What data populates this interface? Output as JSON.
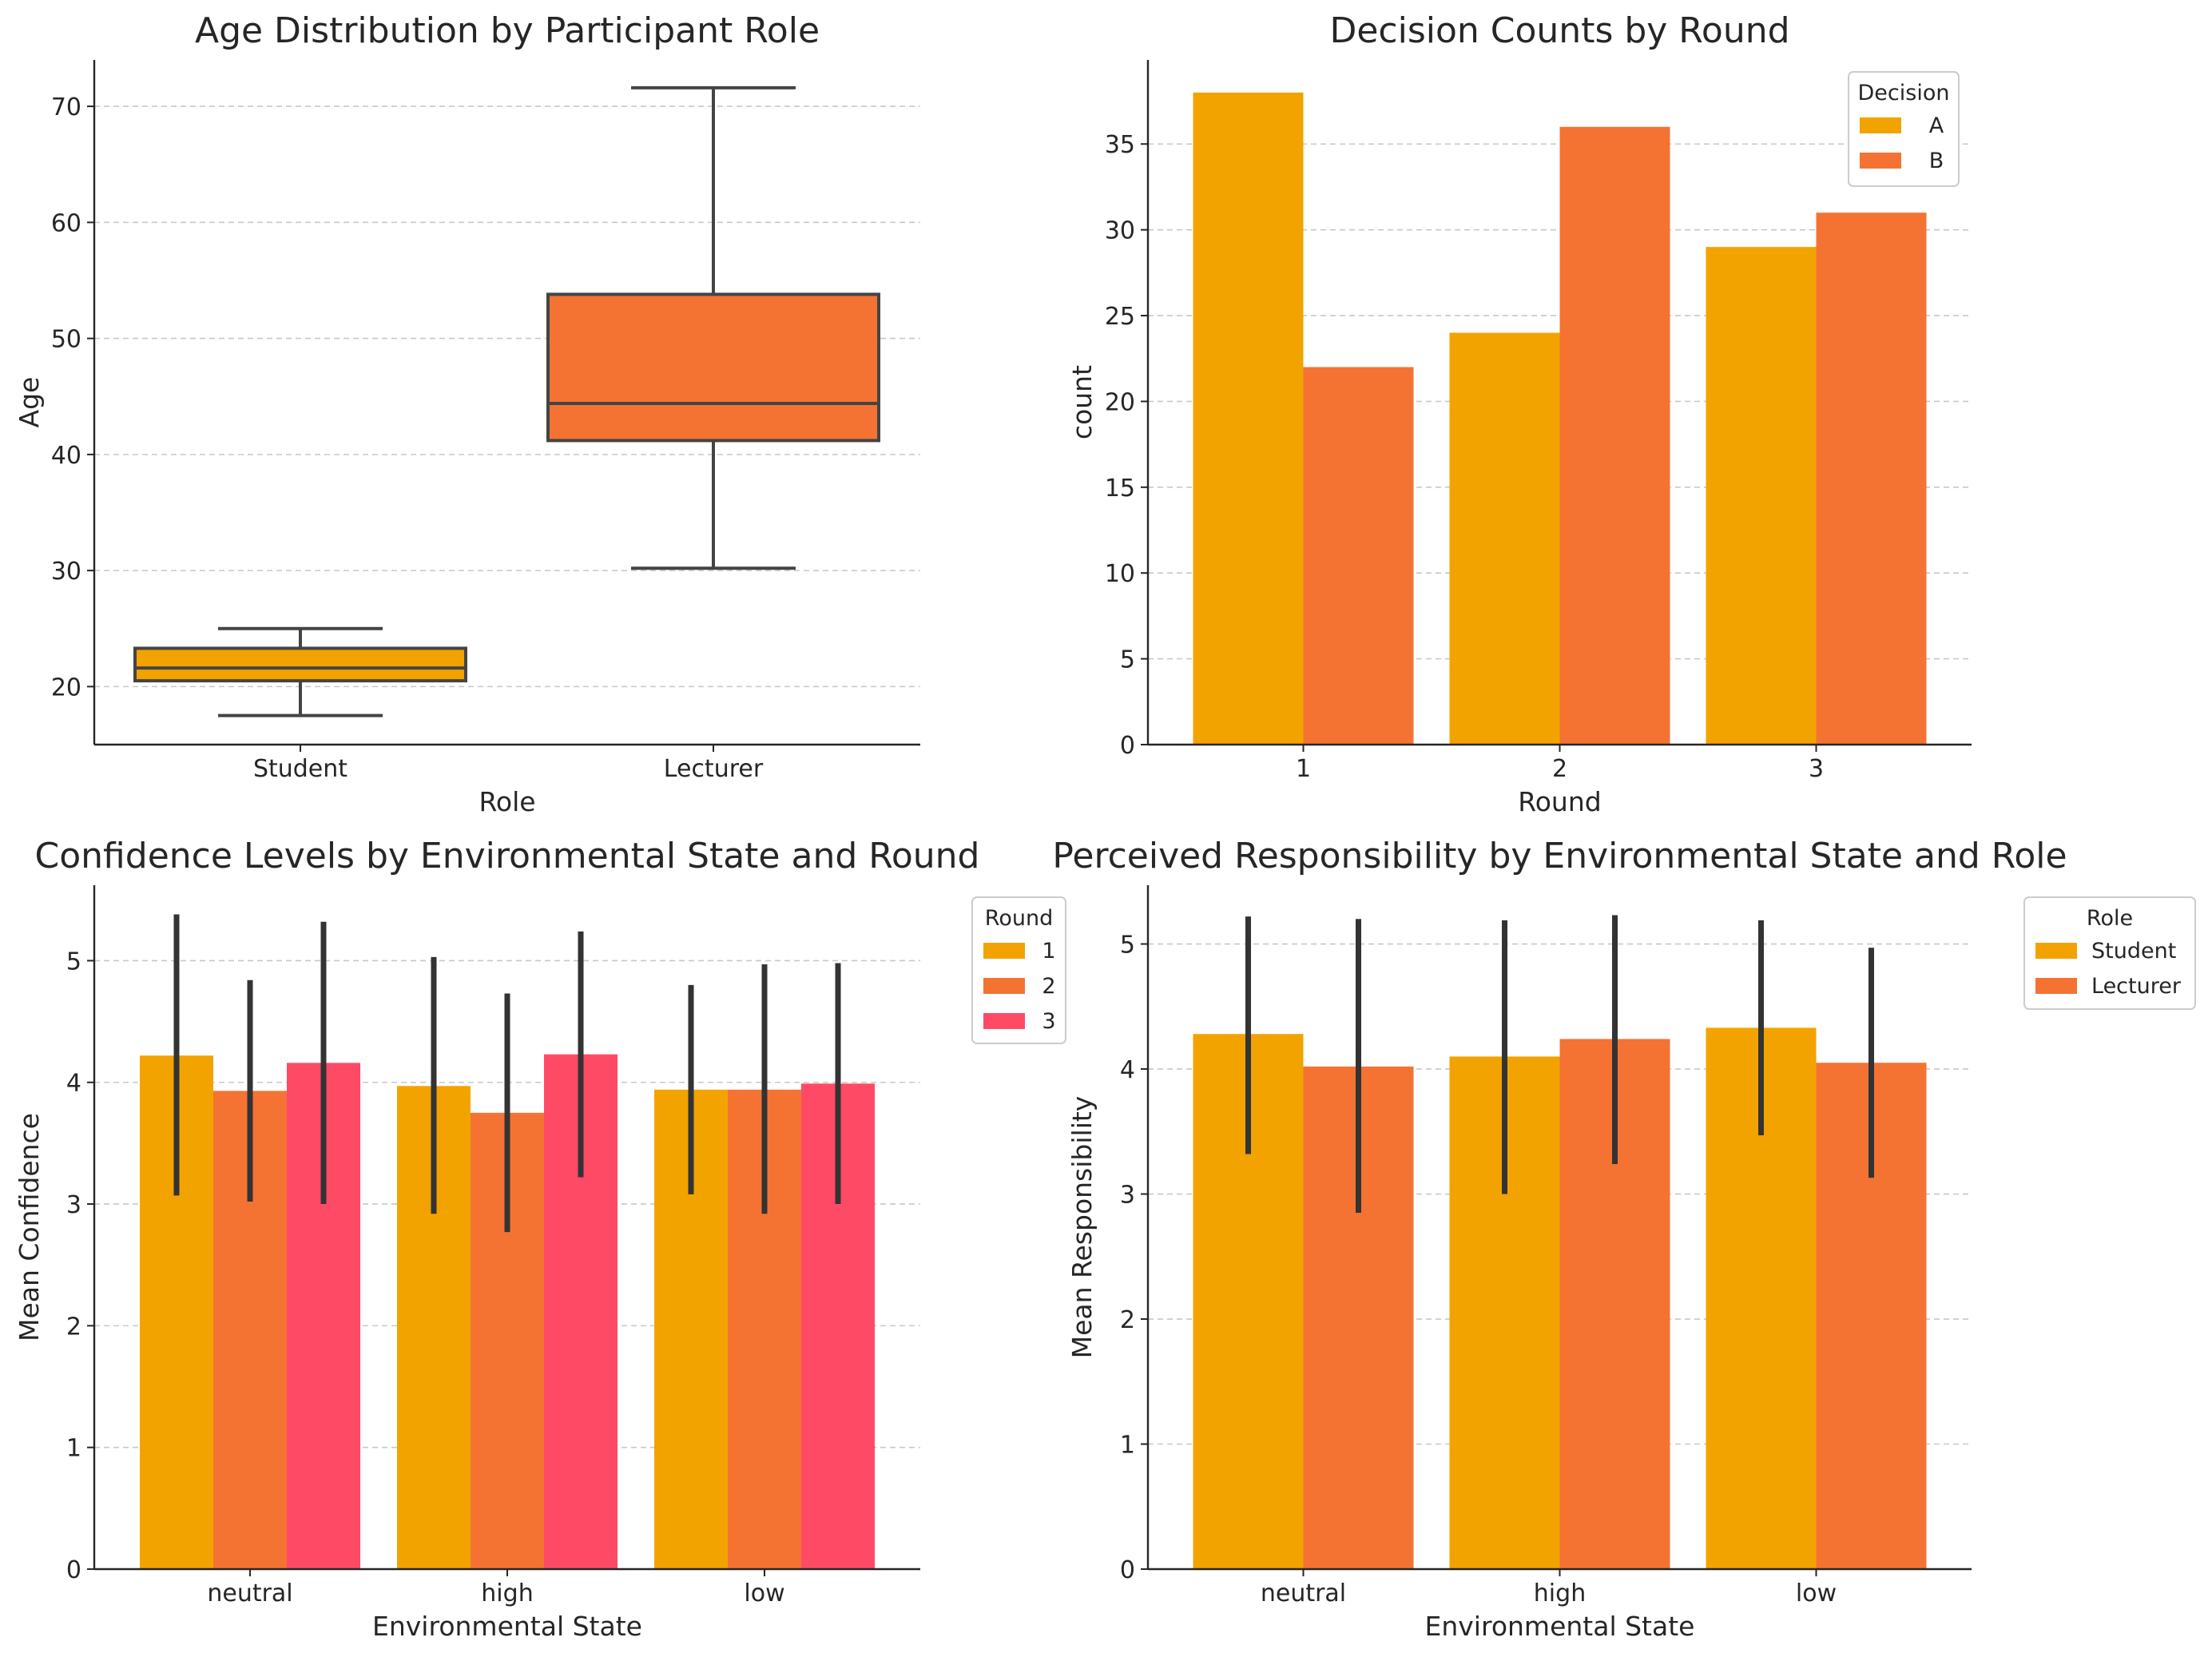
{
  "chart_data": [
    {
      "type": "box",
      "title": "Age Distribution by Participant Role",
      "xlabel": "Role",
      "ylabel": "Age",
      "ylim": [
        15,
        74
      ],
      "yticks": [
        20,
        30,
        40,
        50,
        60,
        70
      ],
      "grid": true,
      "categories": [
        "Student",
        "Lecturer"
      ],
      "colors": [
        "#F2A300",
        "#F47333"
      ],
      "boxes": [
        {
          "category": "Student",
          "whisker_low": 17.5,
          "q1": 20.5,
          "median": 21.6,
          "q3": 23.3,
          "whisker_high": 25.0
        },
        {
          "category": "Lecturer",
          "whisker_low": 30.2,
          "q1": 41.2,
          "median": 44.4,
          "q3": 53.8,
          "whisker_high": 71.6
        }
      ]
    },
    {
      "type": "bar",
      "title": "Decision Counts by Round",
      "xlabel": "Round",
      "ylabel": "count",
      "ylim": [
        0,
        39.9
      ],
      "yticks": [
        0,
        5,
        10,
        15,
        20,
        25,
        30,
        35
      ],
      "grid": true,
      "categories": [
        "1",
        "2",
        "3"
      ],
      "legend": {
        "title": "Decision",
        "position": "upper right"
      },
      "series": [
        {
          "name": "A",
          "color": "#F2A300",
          "values": [
            38,
            24,
            29
          ]
        },
        {
          "name": "B",
          "color": "#F47333",
          "values": [
            22,
            36,
            31
          ]
        }
      ]
    },
    {
      "type": "bar",
      "title": "Confidence Levels by Environmental State and Round",
      "xlabel": "Environmental State",
      "ylabel": "Mean Confidence",
      "ylim": [
        0,
        5.62
      ],
      "yticks": [
        0,
        1,
        2,
        3,
        4,
        5
      ],
      "grid": true,
      "categories": [
        "neutral",
        "high",
        "low"
      ],
      "legend": {
        "title": "Round",
        "position": "outside right"
      },
      "series": [
        {
          "name": "1",
          "color": "#F2A300",
          "values": [
            4.22,
            3.97,
            3.94
          ],
          "err_low": [
            3.07,
            2.92,
            3.08
          ],
          "err_high": [
            5.38,
            5.03,
            4.8
          ]
        },
        {
          "name": "2",
          "color": "#F47333",
          "values": [
            3.93,
            3.75,
            3.94
          ],
          "err_low": [
            3.02,
            2.77,
            2.92
          ],
          "err_high": [
            4.84,
            4.73,
            4.97
          ]
        },
        {
          "name": "3",
          "color": "#FF4A66",
          "values": [
            4.16,
            4.23,
            3.99
          ],
          "err_low": [
            3.0,
            3.22,
            3.0
          ],
          "err_high": [
            5.32,
            5.24,
            4.98
          ]
        }
      ]
    },
    {
      "type": "bar",
      "title": "Perceived Responsibility by Environmental State and Role",
      "xlabel": "Environmental State",
      "ylabel": "Mean Responsibility",
      "ylim": [
        0,
        5.47
      ],
      "yticks": [
        0,
        1,
        2,
        3,
        4,
        5
      ],
      "grid": true,
      "categories": [
        "neutral",
        "high",
        "low"
      ],
      "legend": {
        "title": "Role",
        "position": "outside right"
      },
      "series": [
        {
          "name": "Student",
          "color": "#F2A300",
          "values": [
            4.28,
            4.1,
            4.33
          ],
          "err_low": [
            3.32,
            3.0,
            3.47
          ],
          "err_high": [
            5.22,
            5.19,
            5.19
          ]
        },
        {
          "name": "Lecturer",
          "color": "#F47333",
          "values": [
            4.02,
            4.24,
            4.05
          ],
          "err_low": [
            2.85,
            3.24,
            3.13
          ],
          "err_high": [
            5.2,
            5.23,
            4.97
          ]
        }
      ]
    }
  ]
}
